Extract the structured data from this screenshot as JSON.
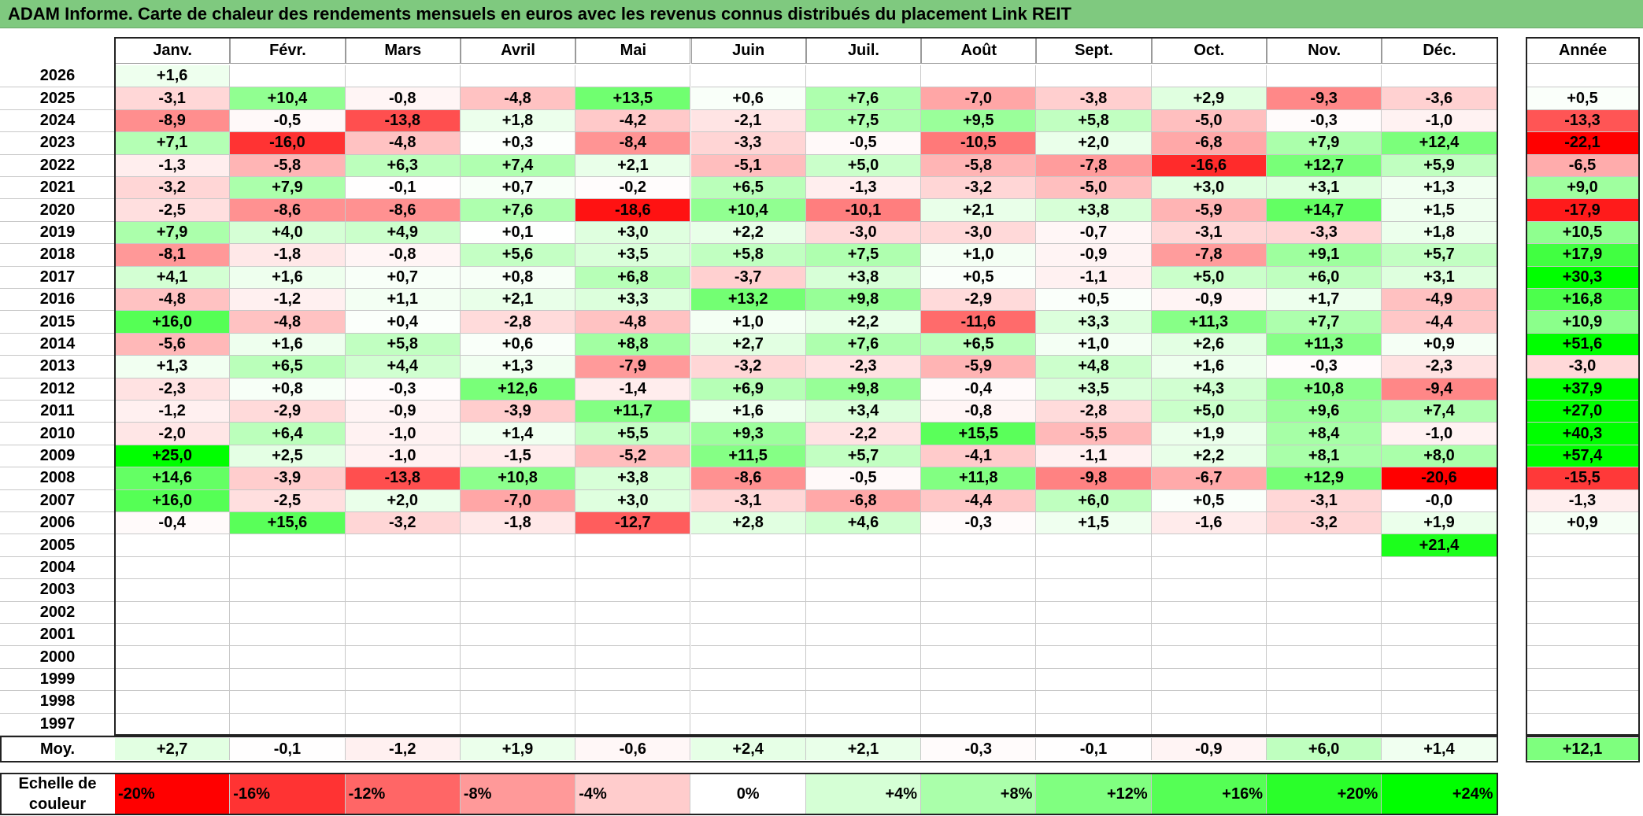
{
  "title": "ADAM Informe. Carte de chaleur des rendements mensuels en euros avec les revenus connus distribués du placement Link REIT",
  "chart_data": {
    "type": "heatmap",
    "title": "ADAM Informe. Carte de chaleur des rendements mensuels en euros avec les revenus connus distribués du placement Link REIT",
    "months": [
      "Janv.",
      "Févr.",
      "Mars",
      "Avril",
      "Mai",
      "Juin",
      "Juil.",
      "Août",
      "Sept.",
      "Oct.",
      "Nov.",
      "Déc."
    ],
    "year_header": "Année",
    "rows": [
      {
        "year": "2026",
        "values": [
          "+1,6",
          "",
          "",
          "",
          "",
          "",
          "",
          "",
          "",
          "",
          "",
          ""
        ],
        "annual": ""
      },
      {
        "year": "2025",
        "values": [
          "-3,1",
          "+10,4",
          "-0,8",
          "-4,8",
          "+13,5",
          "+0,6",
          "+7,6",
          "-7,0",
          "-3,8",
          "+2,9",
          "-9,3",
          "-3,6"
        ],
        "annual": "+0,5"
      },
      {
        "year": "2024",
        "values": [
          "-8,9",
          "-0,5",
          "-13,8",
          "+1,8",
          "-4,2",
          "-2,1",
          "+7,5",
          "+9,5",
          "+5,8",
          "-5,0",
          "-0,3",
          "-1,0"
        ],
        "annual": "-13,3"
      },
      {
        "year": "2023",
        "values": [
          "+7,1",
          "-16,0",
          "-4,8",
          "+0,3",
          "-8,4",
          "-3,3",
          "-0,5",
          "-10,5",
          "+2,0",
          "-6,8",
          "+7,9",
          "+12,4"
        ],
        "annual": "-22,1"
      },
      {
        "year": "2022",
        "values": [
          "-1,3",
          "-5,8",
          "+6,3",
          "+7,4",
          "+2,1",
          "-5,1",
          "+5,0",
          "-5,8",
          "-7,8",
          "-16,6",
          "+12,7",
          "+5,9"
        ],
        "annual": "-6,5"
      },
      {
        "year": "2021",
        "values": [
          "-3,2",
          "+7,9",
          "-0,1",
          "+0,7",
          "-0,2",
          "+6,5",
          "-1,3",
          "-3,2",
          "-5,0",
          "+3,0",
          "+3,1",
          "+1,3"
        ],
        "annual": "+9,0"
      },
      {
        "year": "2020",
        "values": [
          "-2,5",
          "-8,6",
          "-8,6",
          "+7,6",
          "-18,6",
          "+10,4",
          "-10,1",
          "+2,1",
          "+3,8",
          "-5,9",
          "+14,7",
          "+1,5"
        ],
        "annual": "-17,9"
      },
      {
        "year": "2019",
        "values": [
          "+7,9",
          "+4,0",
          "+4,9",
          "+0,1",
          "+3,0",
          "+2,2",
          "-3,0",
          "-3,0",
          "-0,7",
          "-3,1",
          "-3,3",
          "+1,8"
        ],
        "annual": "+10,5"
      },
      {
        "year": "2018",
        "values": [
          "-8,1",
          "-1,8",
          "-0,8",
          "+5,6",
          "+3,5",
          "+5,8",
          "+7,5",
          "+1,0",
          "-0,9",
          "-7,8",
          "+9,1",
          "+5,7"
        ],
        "annual": "+17,9"
      },
      {
        "year": "2017",
        "values": [
          "+4,1",
          "+1,6",
          "+0,7",
          "+0,8",
          "+6,8",
          "-3,7",
          "+3,8",
          "+0,5",
          "-1,1",
          "+5,0",
          "+6,0",
          "+3,1"
        ],
        "annual": "+30,3"
      },
      {
        "year": "2016",
        "values": [
          "-4,8",
          "-1,2",
          "+1,1",
          "+2,1",
          "+3,3",
          "+13,2",
          "+9,8",
          "-2,9",
          "+0,5",
          "-0,9",
          "+1,7",
          "-4,9"
        ],
        "annual": "+16,8"
      },
      {
        "year": "2015",
        "values": [
          "+16,0",
          "-4,8",
          "+0,4",
          "-2,8",
          "-4,8",
          "+1,0",
          "+2,2",
          "-11,6",
          "+3,3",
          "+11,3",
          "+7,7",
          "-4,4"
        ],
        "annual": "+10,9"
      },
      {
        "year": "2014",
        "values": [
          "-5,6",
          "+1,6",
          "+5,8",
          "+0,6",
          "+8,8",
          "+2,7",
          "+7,6",
          "+6,5",
          "+1,0",
          "+2,6",
          "+11,3",
          "+0,9"
        ],
        "annual": "+51,6"
      },
      {
        "year": "2013",
        "values": [
          "+1,3",
          "+6,5",
          "+4,4",
          "+1,3",
          "-7,9",
          "-3,2",
          "-2,3",
          "-5,9",
          "+4,8",
          "+1,6",
          "-0,3",
          "-2,3"
        ],
        "annual": "-3,0"
      },
      {
        "year": "2012",
        "values": [
          "-2,3",
          "+0,8",
          "-0,3",
          "+12,6",
          "-1,4",
          "+6,9",
          "+9,8",
          "-0,4",
          "+3,5",
          "+4,3",
          "+10,8",
          "-9,4"
        ],
        "annual": "+37,9"
      },
      {
        "year": "2011",
        "values": [
          "-1,2",
          "-2,9",
          "-0,9",
          "-3,9",
          "+11,7",
          "+1,6",
          "+3,4",
          "-0,8",
          "-2,8",
          "+5,0",
          "+9,6",
          "+7,4"
        ],
        "annual": "+27,0"
      },
      {
        "year": "2010",
        "values": [
          "-2,0",
          "+6,4",
          "-1,0",
          "+1,4",
          "+5,5",
          "+9,3",
          "-2,2",
          "+15,5",
          "-5,5",
          "+1,9",
          "+8,4",
          "-1,0"
        ],
        "annual": "+40,3"
      },
      {
        "year": "2009",
        "values": [
          "+25,0",
          "+2,5",
          "-1,0",
          "-1,5",
          "-5,2",
          "+11,5",
          "+5,7",
          "-4,1",
          "-1,1",
          "+2,2",
          "+8,1",
          "+8,0"
        ],
        "annual": "+57,4"
      },
      {
        "year": "2008",
        "values": [
          "+14,6",
          "-3,9",
          "-13,8",
          "+10,8",
          "+3,8",
          "-8,6",
          "-0,5",
          "+11,8",
          "-9,8",
          "-6,7",
          "+12,9",
          "-20,6"
        ],
        "annual": "-15,5"
      },
      {
        "year": "2007",
        "values": [
          "+16,0",
          "-2,5",
          "+2,0",
          "-7,0",
          "+3,0",
          "-3,1",
          "-6,8",
          "-4,4",
          "+6,0",
          "+0,5",
          "-3,1",
          "-0,0"
        ],
        "annual": "-1,3"
      },
      {
        "year": "2006",
        "values": [
          "-0,4",
          "+15,6",
          "-3,2",
          "-1,8",
          "-12,7",
          "+2,8",
          "+4,6",
          "-0,3",
          "+1,5",
          "-1,6",
          "-3,2",
          "+1,9"
        ],
        "annual": "+0,9"
      },
      {
        "year": "2005",
        "values": [
          "",
          "",
          "",
          "",
          "",
          "",
          "",
          "",
          "",
          "",
          "",
          "+21,4"
        ],
        "annual": ""
      },
      {
        "year": "2004",
        "values": [
          "",
          "",
          "",
          "",
          "",
          "",
          "",
          "",
          "",
          "",
          "",
          ""
        ],
        "annual": ""
      },
      {
        "year": "2003",
        "values": [
          "",
          "",
          "",
          "",
          "",
          "",
          "",
          "",
          "",
          "",
          "",
          ""
        ],
        "annual": ""
      },
      {
        "year": "2002",
        "values": [
          "",
          "",
          "",
          "",
          "",
          "",
          "",
          "",
          "",
          "",
          "",
          ""
        ],
        "annual": ""
      },
      {
        "year": "2001",
        "values": [
          "",
          "",
          "",
          "",
          "",
          "",
          "",
          "",
          "",
          "",
          "",
          ""
        ],
        "annual": ""
      },
      {
        "year": "2000",
        "values": [
          "",
          "",
          "",
          "",
          "",
          "",
          "",
          "",
          "",
          "",
          "",
          ""
        ],
        "annual": ""
      },
      {
        "year": "1999",
        "values": [
          "",
          "",
          "",
          "",
          "",
          "",
          "",
          "",
          "",
          "",
          "",
          ""
        ],
        "annual": ""
      },
      {
        "year": "1998",
        "values": [
          "",
          "",
          "",
          "",
          "",
          "",
          "",
          "",
          "",
          "",
          "",
          ""
        ],
        "annual": ""
      },
      {
        "year": "1997",
        "values": [
          "",
          "",
          "",
          "",
          "",
          "",
          "",
          "",
          "",
          "",
          "",
          ""
        ],
        "annual": ""
      }
    ],
    "average_label": "Moy.",
    "average": [
      "+2,7",
      "-0,1",
      "-1,2",
      "+1,9",
      "-0,6",
      "+2,4",
      "+2,1",
      "-0,3",
      "-0,1",
      "-0,9",
      "+6,0",
      "+1,4"
    ],
    "average_annual": "+12,1",
    "scale_label": "Echelle de couleur",
    "scale": [
      "-20%",
      "-16%",
      "-12%",
      "-8%",
      "-4%",
      "0%",
      "+4%",
      "+8%",
      "+12%",
      "+16%",
      "+20%",
      "+24%"
    ],
    "colors": {
      "negative_strong": "#ff0000",
      "neutral": "#ffffff",
      "positive_strong": "#00ff00",
      "title_bar": "#7fc97f"
    }
  }
}
